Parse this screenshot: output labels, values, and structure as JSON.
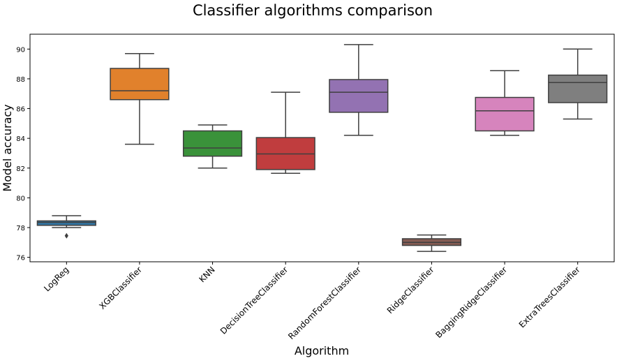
{
  "chart_data": {
    "type": "box",
    "title": "Classifier algorithms comparison",
    "xlabel": "Algorithm",
    "ylabel": "Model accuracy",
    "ylim": [
      75.7,
      91.0
    ],
    "yticks": [
      76,
      78,
      80,
      82,
      84,
      86,
      88,
      90
    ],
    "grid": false,
    "categories": [
      "LogReg",
      "XGBClassifier",
      "KNN",
      "DecisionTreeClassifier",
      "RandomForestClassifier",
      "RidgeClassifier",
      "BaggingRidgeClassifier",
      "ExtraTreesClassifier"
    ],
    "boxes": [
      {
        "whisker_low": 78.0,
        "q1": 78.15,
        "median": 78.35,
        "q3": 78.45,
        "whisker_high": 78.8,
        "outliers": [
          77.45
        ],
        "color": "#3274a1"
      },
      {
        "whisker_low": 83.6,
        "q1": 86.6,
        "median": 87.2,
        "q3": 88.7,
        "whisker_high": 89.7,
        "outliers": [],
        "color": "#e1812c"
      },
      {
        "whisker_low": 82.0,
        "q1": 82.8,
        "median": 83.35,
        "q3": 84.5,
        "whisker_high": 84.9,
        "outliers": [],
        "color": "#3a923a"
      },
      {
        "whisker_low": 81.65,
        "q1": 81.9,
        "median": 82.95,
        "q3": 84.05,
        "whisker_high": 87.1,
        "outliers": [],
        "color": "#c03d3e"
      },
      {
        "whisker_low": 84.2,
        "q1": 85.75,
        "median": 87.1,
        "q3": 87.95,
        "whisker_high": 90.3,
        "outliers": [],
        "color": "#9372b2"
      },
      {
        "whisker_low": 76.4,
        "q1": 76.8,
        "median": 77.0,
        "q3": 77.25,
        "whisker_high": 77.5,
        "outliers": [],
        "color": "#845b53"
      },
      {
        "whisker_low": 84.2,
        "q1": 84.5,
        "median": 85.85,
        "q3": 86.75,
        "whisker_high": 88.55,
        "outliers": [],
        "color": "#d684bd"
      },
      {
        "whisker_low": 85.3,
        "q1": 86.4,
        "median": 87.75,
        "q3": 88.25,
        "whisker_high": 90.0,
        "outliers": [],
        "color": "#7f7f7f"
      }
    ]
  }
}
